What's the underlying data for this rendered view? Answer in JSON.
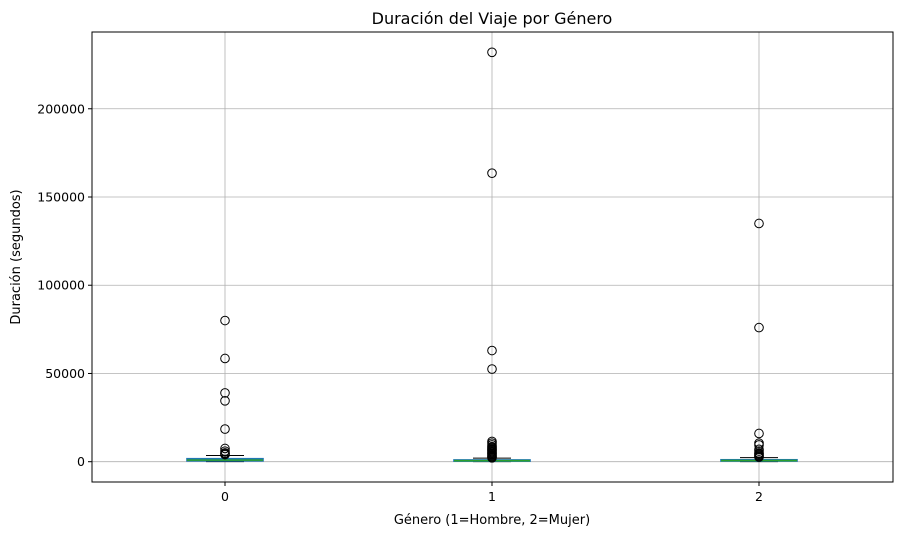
{
  "chart_data": {
    "type": "box",
    "title": "Duración del Viaje por Género",
    "xlabel": "Género (1=Hombre, 2=Mujer)",
    "ylabel": "Duración (segundos)",
    "categories": [
      "0",
      "1",
      "2"
    ],
    "ylim": [
      -11500,
      243500
    ],
    "yticks": [
      0,
      50000,
      100000,
      150000,
      200000
    ],
    "ytick_labels": [
      "0",
      "50000",
      "100000",
      "150000",
      "200000"
    ],
    "grid": true,
    "boxes": [
      {
        "category": "0",
        "whisker_low": 61,
        "q1": 480,
        "median": 900,
        "q3": 1700,
        "whisker_high": 3500,
        "outliers": [
          80000,
          58500,
          39000,
          34500,
          18500,
          7500,
          6000,
          5000,
          4500,
          4000
        ]
      },
      {
        "category": "1",
        "whisker_low": 61,
        "q1": 350,
        "median": 600,
        "q3": 1000,
        "whisker_high": 2000,
        "outliers": [
          232000,
          163500,
          63000,
          52500,
          11500,
          10500,
          9500,
          8500,
          8000,
          7500,
          7000,
          6500,
          6000,
          5500,
          5000,
          4500,
          4000,
          3500,
          3000,
          2500,
          2200
        ]
      },
      {
        "category": "2",
        "whisker_low": 61,
        "q1": 380,
        "median": 650,
        "q3": 1100,
        "whisker_high": 2300,
        "outliers": [
          135000,
          76000,
          16000,
          10500,
          9500,
          7000,
          6000,
          5000,
          4500,
          4000,
          3500,
          3000,
          2600
        ]
      }
    ],
    "colors": {
      "box": "#1f77b4",
      "median": "#2ca02c",
      "grid": "#b0b0b0"
    }
  }
}
